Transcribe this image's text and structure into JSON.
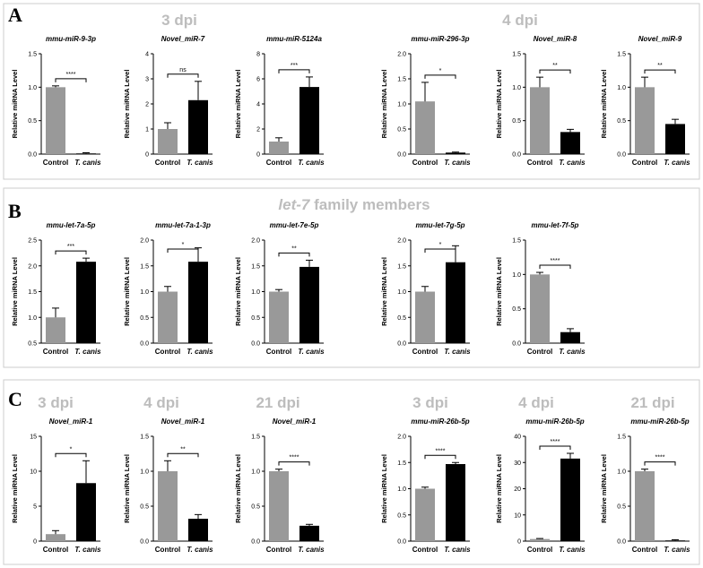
{
  "labels": {
    "control": "Control",
    "tcanis": "T. canis",
    "ylabel": "Relative miRNA Level"
  },
  "colors": {
    "control": "#999999",
    "tcanis": "#000000",
    "group_header": "#bdbdbd",
    "panel_border": "#cccccc"
  },
  "panels": [
    {
      "id": "A",
      "letter": "A",
      "headers": [
        "3 dpi",
        "4 dpi"
      ],
      "header_parts": null
    },
    {
      "id": "B",
      "letter": "B",
      "headers": [],
      "header_parts": {
        "italic": "let-7",
        "rest": " family members"
      }
    },
    {
      "id": "C",
      "letter": "C",
      "headers": [
        "3 dpi",
        "4 dpi",
        "21 dpi",
        "3 dpi",
        "4 dpi",
        "21 dpi"
      ],
      "header_parts": null
    }
  ],
  "chart_data": [
    {
      "type": "bar",
      "panel": "A",
      "title": "mmu-miR-9-3p",
      "categories": [
        "Control",
        "T. canis"
      ],
      "values": [
        1.0,
        0.01
      ],
      "errors": [
        0.02,
        0.01
      ],
      "ylim": [
        0,
        1.5
      ],
      "ticks": [
        "0.0",
        "0.5",
        "1.0",
        "1.5"
      ],
      "significance": "****",
      "ylabel": "Relative miRNA Level"
    },
    {
      "type": "bar",
      "panel": "A",
      "title": "Novel_miR-7",
      "categories": [
        "Control",
        "T. canis"
      ],
      "values": [
        1.0,
        2.15
      ],
      "errors": [
        0.25,
        0.75
      ],
      "ylim": [
        0,
        4
      ],
      "ticks": [
        "0",
        "1",
        "2",
        "3",
        "4"
      ],
      "significance": "ns",
      "ylabel": "Relative miRNA Level"
    },
    {
      "type": "bar",
      "panel": "A",
      "title": "mmu-miR-5124a",
      "categories": [
        "Control",
        "T. canis"
      ],
      "values": [
        1.0,
        5.35
      ],
      "errors": [
        0.3,
        0.8
      ],
      "ylim": [
        0,
        8
      ],
      "ticks": [
        "0",
        "2",
        "4",
        "6",
        "8"
      ],
      "significance": "***",
      "ylabel": "Relative miRNA Level"
    },
    {
      "type": "bar",
      "panel": "A",
      "title": "mmu-miR-296-3p",
      "categories": [
        "Control",
        "T. canis"
      ],
      "values": [
        1.05,
        0.03
      ],
      "errors": [
        0.38,
        0.01
      ],
      "ylim": [
        0,
        2.0
      ],
      "ticks": [
        "0.0",
        "0.5",
        "1.0",
        "1.5",
        "2.0"
      ],
      "significance": "*",
      "ylabel": "Relative miRNA Level"
    },
    {
      "type": "bar",
      "panel": "A",
      "title": "Novel_miR-8",
      "categories": [
        "Control",
        "T. canis"
      ],
      "values": [
        1.0,
        0.33
      ],
      "errors": [
        0.15,
        0.04
      ],
      "ylim": [
        0,
        1.5
      ],
      "ticks": [
        "0.0",
        "0.5",
        "1.0",
        "1.5"
      ],
      "significance": "**",
      "ylabel": "Relative miRNA Level"
    },
    {
      "type": "bar",
      "panel": "A",
      "title": "Novel_miR-9",
      "categories": [
        "Control",
        "T. canis"
      ],
      "values": [
        1.0,
        0.45
      ],
      "errors": [
        0.15,
        0.07
      ],
      "ylim": [
        0,
        1.5
      ],
      "ticks": [
        "0.0",
        "0.5",
        "1.0",
        "1.5"
      ],
      "significance": "**",
      "ylabel": "Relative miRNA Level"
    },
    {
      "type": "bar",
      "panel": "B",
      "title": "mmu-let-7a-5p",
      "categories": [
        "Control",
        "T. canis"
      ],
      "values": [
        1.0,
        2.08
      ],
      "errors": [
        0.18,
        0.07
      ],
      "ylim": [
        0.5,
        2.5
      ],
      "ticks": [
        "0.5",
        "1.0",
        "1.5",
        "2.0",
        "2.5"
      ],
      "significance": "***",
      "ylabel": "Relative miRNA Level"
    },
    {
      "type": "bar",
      "panel": "B",
      "title": "mmu-let-7a-1-3p",
      "categories": [
        "Control",
        "T. canis"
      ],
      "values": [
        1.0,
        1.58
      ],
      "errors": [
        0.1,
        0.27
      ],
      "ylim": [
        0,
        2.0
      ],
      "ticks": [
        "0.0",
        "0.5",
        "1.0",
        "1.5",
        "2.0"
      ],
      "significance": "*",
      "ylabel": "Relative miRNA Level"
    },
    {
      "type": "bar",
      "panel": "B",
      "title": "mmu-let-7e-5p",
      "categories": [
        "Control",
        "T. canis"
      ],
      "values": [
        1.0,
        1.48
      ],
      "errors": [
        0.04,
        0.13
      ],
      "ylim": [
        0,
        2.0
      ],
      "ticks": [
        "0.0",
        "0.5",
        "1.0",
        "1.5",
        "2.0"
      ],
      "significance": "**",
      "ylabel": "Relative miRNA Level"
    },
    {
      "type": "bar",
      "panel": "B",
      "title": "mmu-let-7g-5p",
      "categories": [
        "Control",
        "T. canis"
      ],
      "values": [
        1.0,
        1.57
      ],
      "errors": [
        0.1,
        0.32
      ],
      "ylim": [
        0,
        2.0
      ],
      "ticks": [
        "0.0",
        "0.5",
        "1.0",
        "1.5",
        "2.0"
      ],
      "significance": "*",
      "ylabel": "Relative miRNA Level"
    },
    {
      "type": "bar",
      "panel": "B",
      "title": "mmu-let-7f-5p",
      "categories": [
        "Control",
        "T. canis"
      ],
      "values": [
        1.0,
        0.16
      ],
      "errors": [
        0.03,
        0.05
      ],
      "ylim": [
        0,
        1.5
      ],
      "ticks": [
        "0.0",
        "0.5",
        "1.0",
        "1.5"
      ],
      "significance": "****",
      "ylabel": "Relative miRNA Level"
    },
    {
      "type": "bar",
      "panel": "C",
      "title": "Novel_miR-1",
      "categories": [
        "Control",
        "T. canis"
      ],
      "values": [
        1.0,
        8.3
      ],
      "errors": [
        0.5,
        3.2
      ],
      "ylim": [
        0,
        15
      ],
      "ticks": [
        "0",
        "5",
        "10",
        "15"
      ],
      "significance": "*",
      "ylabel": "Relative miRNA Level"
    },
    {
      "type": "bar",
      "panel": "C",
      "title": "Novel_miR-1",
      "categories": [
        "Control",
        "T. canis"
      ],
      "values": [
        1.0,
        0.32
      ],
      "errors": [
        0.15,
        0.06
      ],
      "ylim": [
        0,
        1.5
      ],
      "ticks": [
        "0.0",
        "0.5",
        "1.0",
        "1.5"
      ],
      "significance": "**",
      "ylabel": "Relative miRNA Level"
    },
    {
      "type": "bar",
      "panel": "C",
      "title": "Novel_miR-1",
      "categories": [
        "Control",
        "T. canis"
      ],
      "values": [
        1.0,
        0.22
      ],
      "errors": [
        0.03,
        0.02
      ],
      "ylim": [
        0,
        1.5
      ],
      "ticks": [
        "0.0",
        "0.5",
        "1.0",
        "1.5"
      ],
      "significance": "****",
      "ylabel": "Relative miRNA Level"
    },
    {
      "type": "bar",
      "panel": "C",
      "title": "mmu-miR-26b-5p",
      "categories": [
        "Control",
        "T. canis"
      ],
      "values": [
        1.0,
        1.47
      ],
      "errors": [
        0.03,
        0.03
      ],
      "ylim": [
        0,
        2.0
      ],
      "ticks": [
        "0.0",
        "0.5",
        "1.0",
        "1.5",
        "2.0"
      ],
      "significance": "****",
      "ylabel": "Relative miRNA Level"
    },
    {
      "type": "bar",
      "panel": "C",
      "title": "mmu-miR-26b-5p",
      "categories": [
        "Control",
        "T. canis"
      ],
      "values": [
        0.8,
        31.5
      ],
      "errors": [
        0.2,
        2.0
      ],
      "ylim": [
        0,
        40
      ],
      "ticks": [
        "0",
        "10",
        "20",
        "30",
        "40"
      ],
      "significance": "****",
      "ylabel": "Relative miRNA Level"
    },
    {
      "type": "bar",
      "panel": "C",
      "title": "mmu-miR-26b-5p",
      "categories": [
        "Control",
        "T. canis"
      ],
      "values": [
        1.0,
        0.01
      ],
      "errors": [
        0.03,
        0.01
      ],
      "ylim": [
        0,
        1.5
      ],
      "ticks": [
        "0.0",
        "0.5",
        "1.0",
        "1.5"
      ],
      "significance": "****",
      "ylabel": "Relative miRNA Level"
    }
  ]
}
